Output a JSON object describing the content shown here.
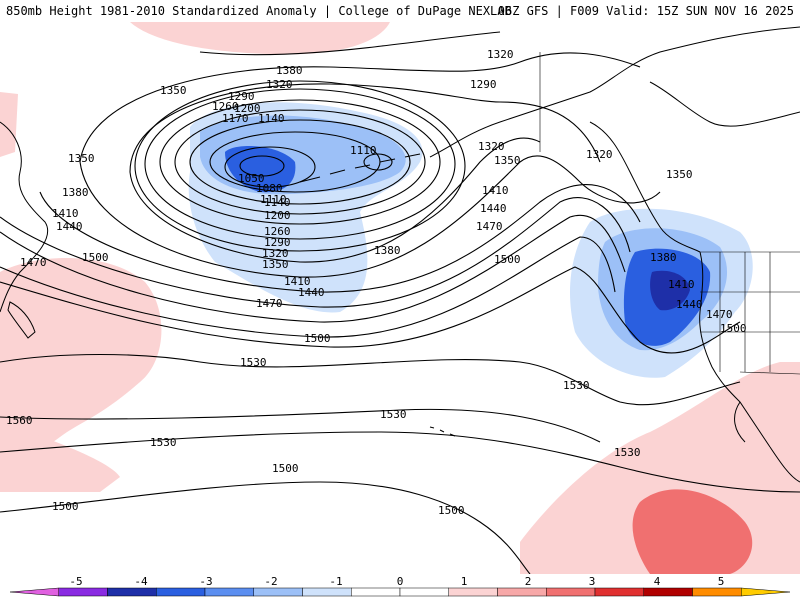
{
  "header": {
    "title_left": "850mb Height 1981-2010 Standardized Anomaly | College of DuPage NEXLAB",
    "title_right": "06Z GFS | F009 Valid: 15Z SUN NOV 16 2025"
  },
  "contour_labels": [
    {
      "id": "l1320a",
      "text": "1320"
    },
    {
      "id": "l1380a",
      "text": "1380"
    },
    {
      "id": "l1350a",
      "text": "1350"
    },
    {
      "id": "l1320b",
      "text": "1320"
    },
    {
      "id": "l1290a",
      "text": "1290"
    },
    {
      "id": "l1290b",
      "text": "1290"
    },
    {
      "id": "l1260a",
      "text": "1260"
    },
    {
      "id": "l1200a",
      "text": "1200"
    },
    {
      "id": "l1170a",
      "text": "1170"
    },
    {
      "id": "l1140a",
      "text": "1140"
    },
    {
      "id": "l1110a",
      "text": "1110"
    },
    {
      "id": "l1320c",
      "text": "1320"
    },
    {
      "id": "l1350b",
      "text": "1350"
    },
    {
      "id": "l1320d",
      "text": "1320"
    },
    {
      "id": "l1350c",
      "text": "1350"
    },
    {
      "id": "l1050a",
      "text": "1050"
    },
    {
      "id": "l1080a",
      "text": "1080"
    },
    {
      "id": "l1110b",
      "text": "1110"
    },
    {
      "id": "l1140b",
      "text": "1140"
    },
    {
      "id": "l1200b",
      "text": "1200"
    },
    {
      "id": "l1260b",
      "text": "1260"
    },
    {
      "id": "l1290c",
      "text": "1290"
    },
    {
      "id": "l1320e",
      "text": "1320"
    },
    {
      "id": "l1350d",
      "text": "1350"
    },
    {
      "id": "l1350e",
      "text": "1350"
    },
    {
      "id": "l1380b",
      "text": "1380"
    },
    {
      "id": "l1410a",
      "text": "1410"
    },
    {
      "id": "l1440a",
      "text": "1440"
    },
    {
      "id": "l1470a",
      "text": "1470"
    },
    {
      "id": "l1500a",
      "text": "1500"
    },
    {
      "id": "l1410b",
      "text": "1410"
    },
    {
      "id": "l1440b",
      "text": "1440"
    },
    {
      "id": "l1470b",
      "text": "1470"
    },
    {
      "id": "l1500b",
      "text": "1500"
    },
    {
      "id": "l1380c",
      "text": "1380"
    },
    {
      "id": "l1410c",
      "text": "1410"
    },
    {
      "id": "l1440c",
      "text": "1440"
    },
    {
      "id": "l1470c",
      "text": "1470"
    },
    {
      "id": "l1500c",
      "text": "1500"
    },
    {
      "id": "l1380d",
      "text": "1380"
    },
    {
      "id": "l1410d",
      "text": "1410"
    },
    {
      "id": "l1440d",
      "text": "1440"
    },
    {
      "id": "l1470d",
      "text": "1470"
    },
    {
      "id": "l1500d",
      "text": "1500"
    },
    {
      "id": "l1530a",
      "text": "1530"
    },
    {
      "id": "l1530b",
      "text": "1530"
    },
    {
      "id": "l1530c",
      "text": "1530"
    },
    {
      "id": "l1560a",
      "text": "1560"
    },
    {
      "id": "l1530d",
      "text": "1530"
    },
    {
      "id": "l1500e",
      "text": "1500"
    },
    {
      "id": "l1500f",
      "text": "1500"
    },
    {
      "id": "l1500g",
      "text": "1500"
    },
    {
      "id": "l1530e",
      "text": "1530"
    }
  ],
  "legend": {
    "ticks": [
      "-5",
      "-4",
      "-3",
      "-2",
      "-1",
      "0",
      "1",
      "2",
      "3",
      "4",
      "5"
    ],
    "colors": [
      "#e060e0",
      "#8a2be2",
      "#1e2fa8",
      "#2a5fe0",
      "#5b8ef0",
      "#9cc0f7",
      "#cfe2fb",
      "#ffffff",
      "#ffffff",
      "#fbd3d3",
      "#f7a8a8",
      "#f07070",
      "#e03030",
      "#b00000",
      "#ff8c00",
      "#ffcc00"
    ]
  }
}
